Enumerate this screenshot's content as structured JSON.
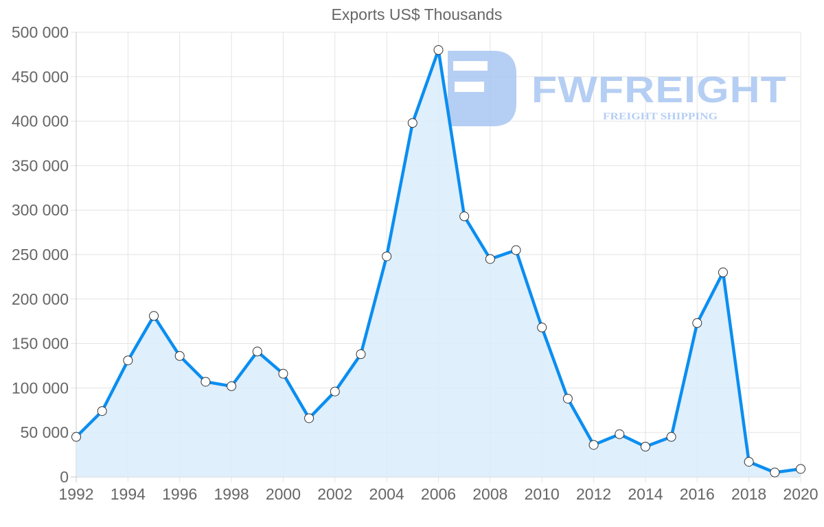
{
  "chart_data": {
    "type": "line",
    "title": "Exports US$ Thousands",
    "xlabel": "",
    "ylabel": "",
    "x": [
      1992,
      1993,
      1994,
      1995,
      1996,
      1997,
      1998,
      1999,
      2000,
      2001,
      2002,
      2003,
      2004,
      2005,
      2006,
      2007,
      2008,
      2009,
      2010,
      2011,
      2012,
      2013,
      2014,
      2015,
      2016,
      2017,
      2018,
      2019,
      2020
    ],
    "series": [
      {
        "name": "Exports US$ Thousands",
        "values": [
          45000,
          74000,
          131000,
          181000,
          136000,
          107000,
          102000,
          141000,
          116000,
          66000,
          96000,
          138000,
          248000,
          398000,
          480000,
          293000,
          245000,
          255000,
          168000,
          88000,
          36000,
          48000,
          34000,
          45000,
          173000,
          230000,
          17000,
          5000,
          9000
        ],
        "color": "#0b8ef0",
        "fill": "#d9ecfc",
        "filled": true
      }
    ],
    "ylim": [
      0,
      500000
    ],
    "yticks": [
      0,
      50000,
      100000,
      150000,
      200000,
      250000,
      300000,
      350000,
      400000,
      450000,
      500000
    ],
    "ytick_labels": [
      "0",
      "50 000",
      "100 000",
      "150 000",
      "200 000",
      "250 000",
      "300 000",
      "350 000",
      "400 000",
      "450 000",
      "500 000"
    ],
    "xticks": [
      1992,
      1994,
      1996,
      1998,
      2000,
      2002,
      2004,
      2006,
      2008,
      2010,
      2012,
      2014,
      2016,
      2018,
      2020
    ],
    "xtick_labels": [
      "1992",
      "1994",
      "1996",
      "1998",
      "2000",
      "2002",
      "2004",
      "2006",
      "2008",
      "2010",
      "2012",
      "2014",
      "2016",
      "2018",
      "2020"
    ],
    "grid": true,
    "legend": "none"
  },
  "watermark": {
    "brand": "FWFREIGHT",
    "tagline": "FREIGHT SHIPPING",
    "color": "#a9c6f2"
  }
}
